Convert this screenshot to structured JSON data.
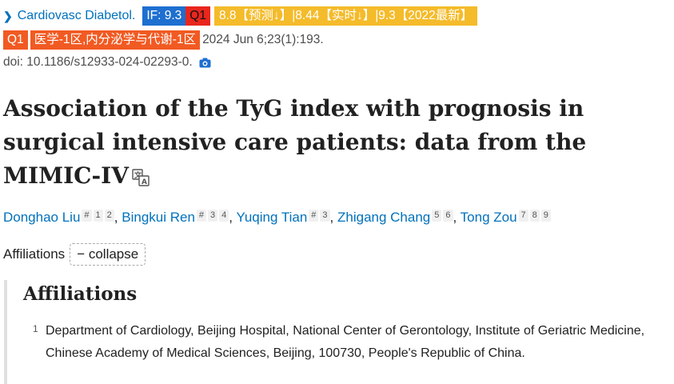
{
  "header": {
    "journal": "Cardiovasc Diabetol.",
    "if_badge": "IF: 9.3",
    "q1_badge": "Q1",
    "metrics_badge": "8.8【预测↓】|8.44【实时↓】|9.3【2022最新】",
    "q1_badge_2": "Q1",
    "category_badge": "医学-1区,内分泌学与代谢-1区",
    "citation": "2024 Jun 6;23(1):193.",
    "doi": "doi: 10.1186/s12933-024-02293-0."
  },
  "article": {
    "title": "Association of the TyG index with prognosis in surgical intensive care patients: data from the MIMIC-IV"
  },
  "authors": [
    {
      "name": "Donghao Liu",
      "sups": [
        "#",
        "1",
        "2"
      ]
    },
    {
      "name": "Bingkui Ren",
      "sups": [
        "#",
        "3",
        "4"
      ]
    },
    {
      "name": "Yuqing Tian",
      "sups": [
        "#",
        "3"
      ]
    },
    {
      "name": "Zhigang Chang",
      "sups": [
        "5",
        "6"
      ]
    },
    {
      "name": "Tong Zou",
      "sups": [
        "7",
        "8",
        "9"
      ]
    }
  ],
  "affiliations_toggle": {
    "label": "Affiliations",
    "button": "− collapse"
  },
  "affiliations": {
    "heading": "Affiliations",
    "items": [
      {
        "num": "1",
        "text": "Department of Cardiology, Beijing Hospital, National Center of Gerontology, Institute of Geriatric Medicine, Chinese Academy of Medical Sciences, Beijing, 100730, People's Republic of China."
      }
    ]
  },
  "icons": {
    "journal_arrow": "chevron-right-icon",
    "doi_icon": "camera-icon",
    "title_icon": "translate-icon"
  },
  "colors": {
    "link": "#0071bc",
    "if_badge": "#1e6fd0",
    "q1_badge": "#e8261d",
    "metrics_badge": "#f4bb2a",
    "category_badge": "#f15a22"
  }
}
